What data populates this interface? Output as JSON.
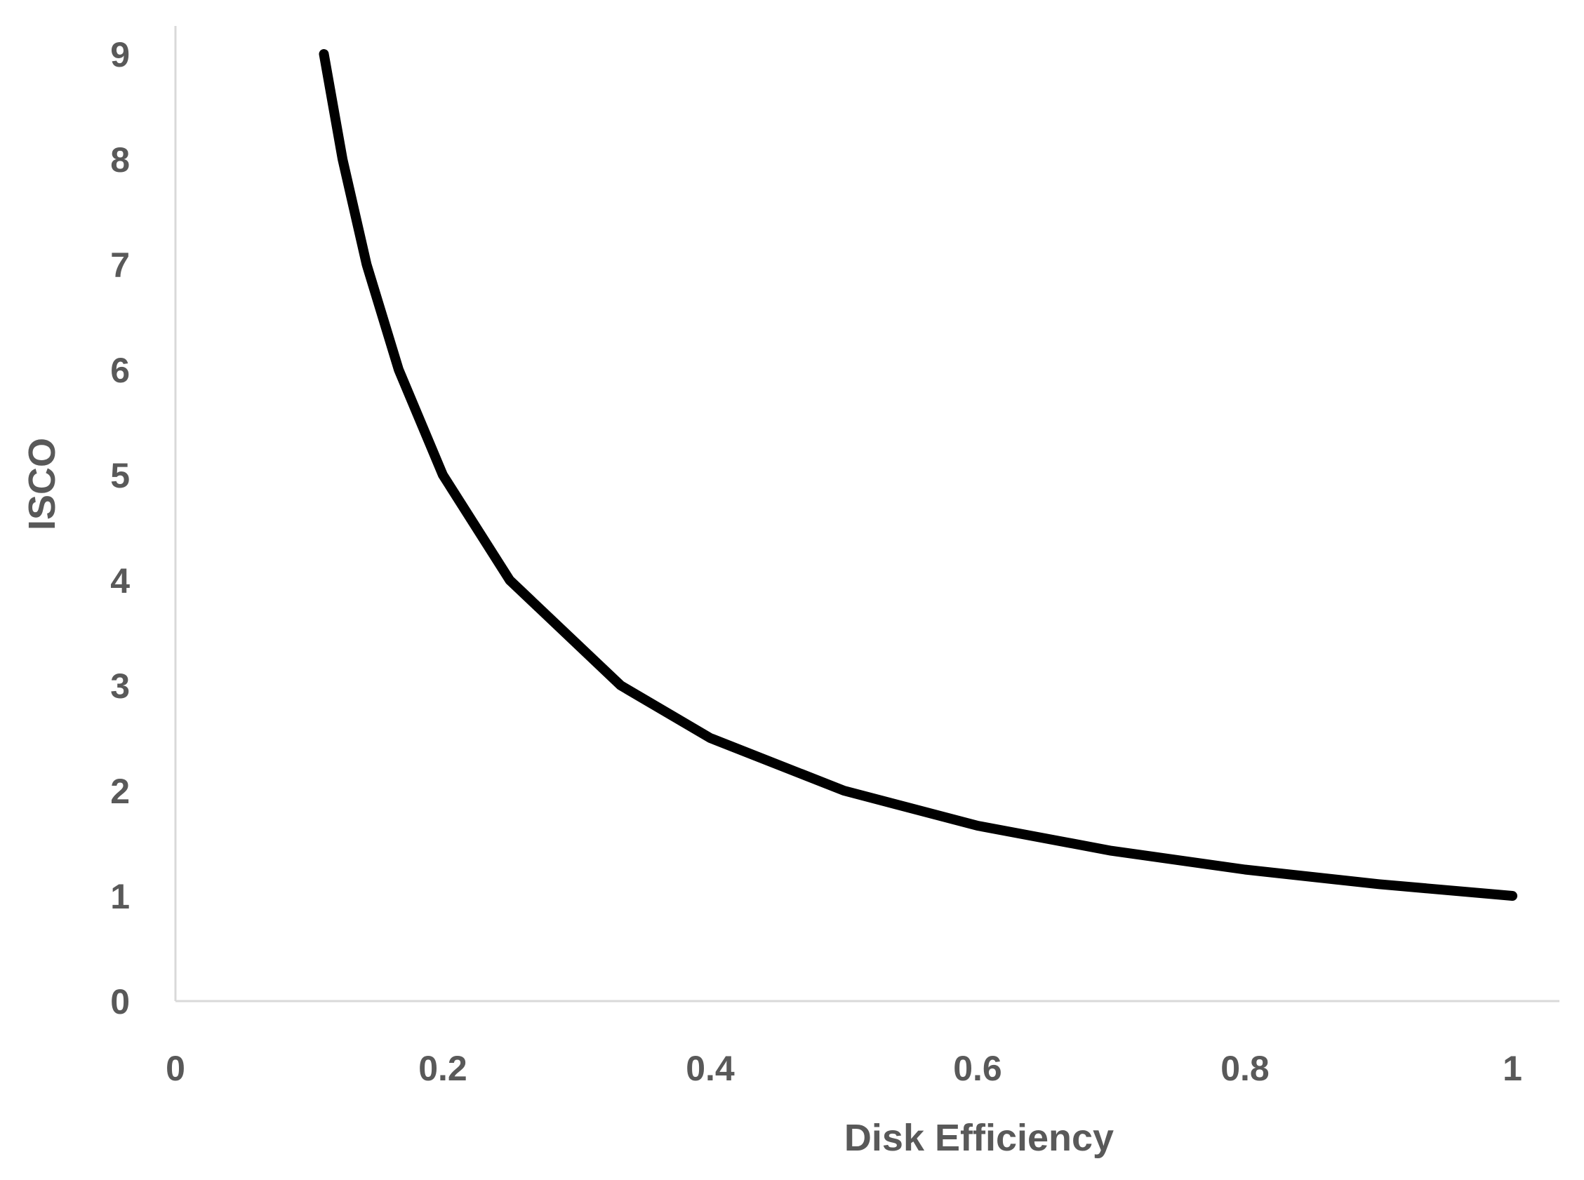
{
  "chart_data": {
    "type": "line",
    "title": "",
    "xlabel": "Disk Efficiency",
    "ylabel": "ISCO",
    "xlim": [
      0,
      1.03
    ],
    "ylim": [
      0,
      9
    ],
    "xticks": [
      "0",
      "0.2",
      "0.4",
      "0.6",
      "0.8",
      "1"
    ],
    "yticks": [
      "0",
      "1",
      "2",
      "3",
      "4",
      "5",
      "6",
      "7",
      "8",
      "9"
    ],
    "grid": false,
    "legend": "none",
    "series": [
      {
        "x": [
          0.111,
          0.125,
          0.143,
          0.167,
          0.2,
          0.25,
          0.333,
          0.4,
          0.5,
          0.6,
          0.7,
          0.8,
          0.9,
          1.0
        ],
        "y": [
          9.0,
          8.0,
          7.0,
          6.0,
          5.0,
          4.0,
          3.0,
          2.5,
          2.0,
          1.667,
          1.429,
          1.25,
          1.111,
          1.0
        ]
      }
    ],
    "colors": {
      "line": "#000000",
      "axis": "#d9d9d9",
      "text": "#595959"
    }
  }
}
